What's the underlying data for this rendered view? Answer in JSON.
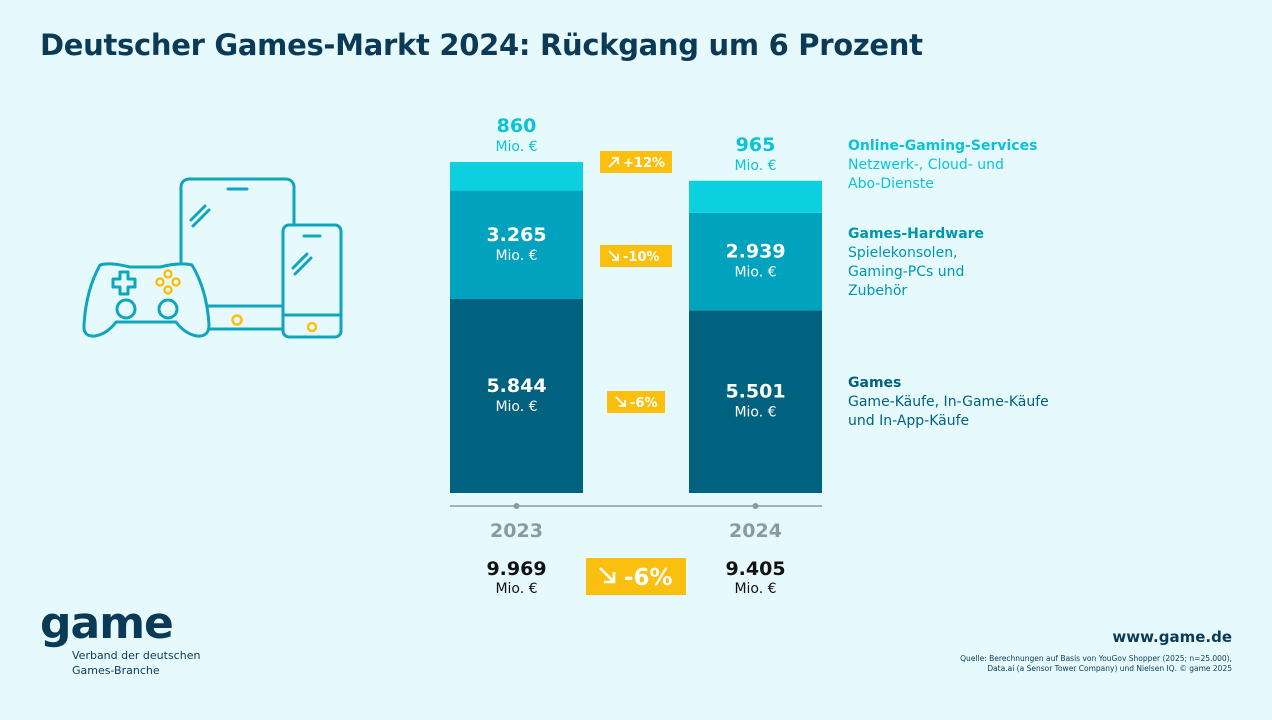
{
  "title": "Deutscher Games-Markt 2024: Rückgang um 6 Prozent",
  "chart_data": {
    "type": "bar",
    "stacked": true,
    "categories": [
      "2023",
      "2024"
    ],
    "unit": "Mio. €",
    "series": [
      {
        "name": "Games",
        "values": [
          5844,
          5501
        ],
        "labels": [
          "5.844",
          "5.501"
        ],
        "color": "#00627f"
      },
      {
        "name": "Games-Hardware",
        "values": [
          3265,
          2939
        ],
        "labels": [
          "3.265",
          "2.939"
        ],
        "color": "#00a2bd"
      },
      {
        "name": "Online-Gaming-Services",
        "values": [
          860,
          965
        ],
        "labels": [
          "860",
          "965"
        ],
        "color": "#0ccfdf"
      }
    ],
    "changes": [
      {
        "series": "Games",
        "label": "-6%",
        "direction": "down"
      },
      {
        "series": "Games-Hardware",
        "label": "-10%",
        "direction": "down"
      },
      {
        "series": "Online-Gaming-Services",
        "label": "+12%",
        "direction": "up"
      }
    ],
    "totals": {
      "labels": [
        "9.969",
        "9.405"
      ],
      "unit": "Mio. €",
      "change": "-6%",
      "direction": "down"
    }
  },
  "legend": [
    {
      "title": "Online-Gaming-Services",
      "desc": "Netzwerk-, Cloud- und\nAbo-Dienste",
      "color": "#0bc3d6"
    },
    {
      "title": "Games-Hardware",
      "desc": "Spielekonsolen,\nGaming-PCs und\nZubehör",
      "color": "#0096ae"
    },
    {
      "title": "Games",
      "desc": "Game-Käufe, In-Game-Käufe\nund In-App-Käufe",
      "color": "#00627f"
    }
  ],
  "footer": {
    "logo": "game",
    "logo_sub": "Verband der deutschen\nGames-Branche",
    "website": "www.game.de",
    "source": "Quelle: Berechnungen auf Basis von YouGov Shopper (2025; n=25.000), Data.ai (a Sensor Tower Company) und Nielsen IQ. © game 2025"
  },
  "colors": {
    "accent": "#fbbf10",
    "background": "#e6fafd",
    "title": "#0a3a55",
    "axis": "#8a9aa2"
  },
  "icons": [
    "gamepad-icon",
    "tablet-icon",
    "smartphone-icon",
    "arrow-up-right-icon",
    "arrow-down-right-icon"
  ]
}
